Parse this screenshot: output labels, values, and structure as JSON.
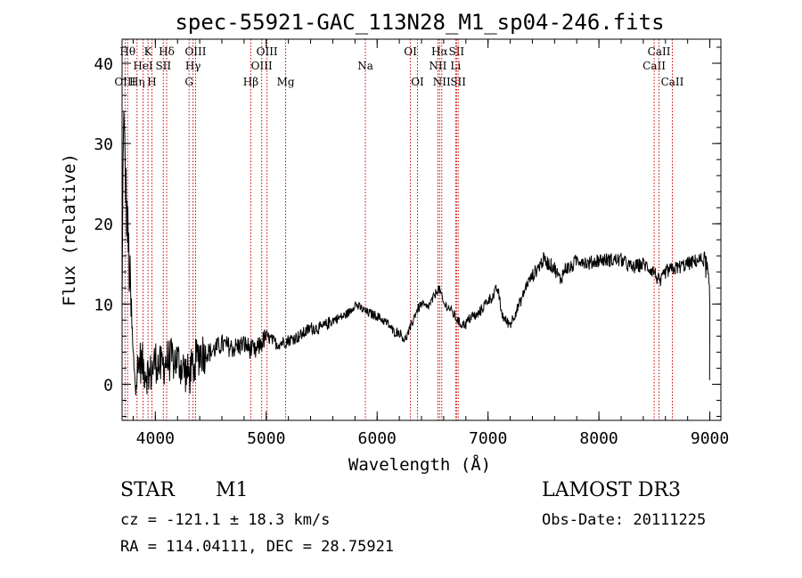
{
  "chart_data": {
    "type": "line",
    "title": "spec-55921-GAC_113N28_M1_sp04-246.fits",
    "xlabel": "Wavelength (Å)",
    "ylabel": "Flux (relative)",
    "xlim": [
      3700,
      9100
    ],
    "ylim": [
      -4.5,
      43
    ],
    "xticks": [
      4000,
      5000,
      6000,
      7000,
      8000,
      9000
    ],
    "yticks": [
      0,
      10,
      20,
      30,
      40
    ],
    "line_color": "#000000",
    "marker_color": "#cc0000",
    "spectral_lines": [
      {
        "label": "OIII",
        "wavelength": 3727,
        "row": 3
      },
      {
        "label": "Hθ",
        "wavelength": 3750,
        "row": 1
      },
      {
        "label": "Hη",
        "wavelength": 3835,
        "row": 3
      },
      {
        "label": "HeI",
        "wavelength": 3889,
        "row": 2
      },
      {
        "label": "K",
        "wavelength": 3934,
        "row": 1
      },
      {
        "label": "H",
        "wavelength": 3969,
        "row": 3
      },
      {
        "label": "SII",
        "wavelength": 4072,
        "row": 2
      },
      {
        "label": "Hδ",
        "wavelength": 4102,
        "row": 1
      },
      {
        "label": "G",
        "wavelength": 4304,
        "row": 3
      },
      {
        "label": "Hγ",
        "wavelength": 4340,
        "row": 2
      },
      {
        "label": "OIII",
        "wavelength": 4363,
        "row": 1
      },
      {
        "label": "Hβ",
        "wavelength": 4861,
        "row": 3
      },
      {
        "label": "OIII",
        "wavelength": 4959,
        "row": 2
      },
      {
        "label": "OIII",
        "wavelength": 5007,
        "row": 1
      },
      {
        "label": "Mg",
        "wavelength": 5175,
        "row": 3
      },
      {
        "label": "Na",
        "wavelength": 5894,
        "row": 2
      },
      {
        "label": "OI",
        "wavelength": 6300,
        "row": 1
      },
      {
        "label": "OI",
        "wavelength": 6364,
        "row": 3
      },
      {
        "label": "NII",
        "wavelength": 6548,
        "row": 2
      },
      {
        "label": "Hα",
        "wavelength": 6563,
        "row": 1
      },
      {
        "label": "NII",
        "wavelength": 6583,
        "row": 3
      },
      {
        "label": "Li",
        "wavelength": 6708,
        "row": 2
      },
      {
        "label": "SII",
        "wavelength": 6716,
        "row": 1
      },
      {
        "label": "SII",
        "wavelength": 6731,
        "row": 3
      },
      {
        "label": "CaII",
        "wavelength": 8498,
        "row": 2
      },
      {
        "label": "CaII",
        "wavelength": 8542,
        "row": 1
      },
      {
        "label": "CaII",
        "wavelength": 8662,
        "row": 3
      }
    ],
    "spectrum_anchors": {
      "wavelength": [
        3700,
        3712,
        3725,
        3740,
        3760,
        3780,
        3800,
        3830,
        3860,
        3900,
        3950,
        4000,
        4050,
        4100,
        4200,
        4300,
        4400,
        4500,
        4600,
        4700,
        4800,
        4900,
        5000,
        5100,
        5200,
        5300,
        5400,
        5500,
        5600,
        5700,
        5750,
        5800,
        5850,
        5900,
        6000,
        6100,
        6150,
        6200,
        6250,
        6300,
        6350,
        6400,
        6450,
        6500,
        6550,
        6570,
        6600,
        6650,
        6700,
        6750,
        6800,
        6850,
        6900,
        6950,
        7000,
        7050,
        7080,
        7100,
        7120,
        7150,
        7200,
        7250,
        7300,
        7350,
        7400,
        7450,
        7500,
        7550,
        7600,
        7650,
        7700,
        7750,
        7800,
        7850,
        7900,
        8000,
        8100,
        8200,
        8300,
        8400,
        8500,
        8550,
        8600,
        8700,
        8800,
        8900,
        8950,
        8980,
        9000
      ],
      "flux": [
        8,
        34,
        28,
        22,
        16,
        9,
        3,
        1,
        3,
        2,
        1,
        3,
        2,
        3,
        3,
        1,
        4,
        4,
        5,
        4.5,
        5,
        4,
        6,
        5,
        5.5,
        6,
        7,
        7,
        8,
        8.5,
        9,
        10,
        9.5,
        9,
        8.5,
        7.5,
        6.5,
        6.5,
        5.5,
        7,
        9,
        10,
        9.5,
        10.5,
        12,
        11.5,
        10,
        9.5,
        8.5,
        7.5,
        7.5,
        8.5,
        8.5,
        9.5,
        10.5,
        11,
        12,
        11,
        9,
        8,
        7.5,
        9,
        10.5,
        12.5,
        13.5,
        14.5,
        15.5,
        15,
        14.5,
        13,
        14.5,
        14.5,
        15.5,
        15.5,
        15,
        15.5,
        15.5,
        15.5,
        14.5,
        15,
        14,
        12.5,
        14,
        14.5,
        15,
        15.5,
        15.5,
        14,
        10
      ]
    }
  },
  "info": {
    "object_class": "STAR",
    "subclass": "M1",
    "survey": "LAMOST DR3",
    "redshift": "cz = -121.1 ± 18.3 km/s",
    "obs_date": "Obs-Date: 20111225",
    "coords": "RA = 114.04111, DEC =  28.75921"
  }
}
